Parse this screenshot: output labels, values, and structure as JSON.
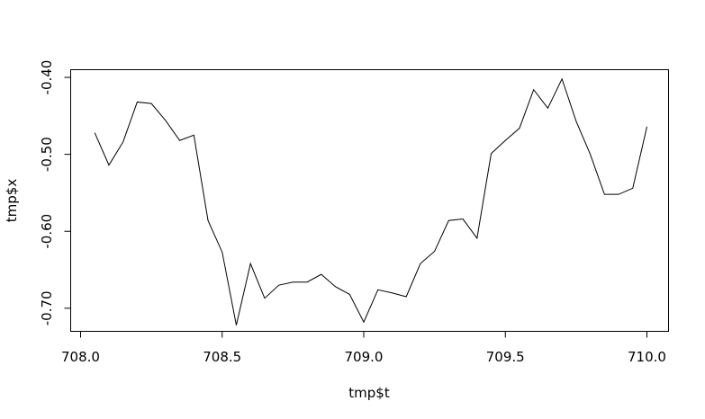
{
  "chart_data": {
    "type": "line",
    "title": "",
    "xlabel": "tmp$t",
    "ylabel": "tmp$x",
    "xlim": [
      708.0,
      710.0
    ],
    "ylim": [
      -0.73,
      -0.39
    ],
    "grid": false,
    "legend": "none",
    "x_ticks": [
      708.0,
      708.5,
      709.0,
      709.5,
      710.0
    ],
    "x_tick_labels": [
      "708.0",
      "708.5",
      "709.0",
      "709.5",
      "710.0"
    ],
    "y_ticks": [
      -0.7,
      -0.6,
      -0.5,
      -0.4
    ],
    "y_tick_labels": [
      "-0.70",
      "-0.60",
      "-0.50",
      "-0.40"
    ],
    "line_color": "#000000",
    "x": [
      708.05,
      708.1,
      708.15,
      708.2,
      708.25,
      708.3,
      708.35,
      708.4,
      708.45,
      708.5,
      708.55,
      708.6,
      708.65,
      708.7,
      708.75,
      708.8,
      708.85,
      708.9,
      708.95,
      709.0,
      709.05,
      709.1,
      709.15,
      709.2,
      709.25,
      709.3,
      709.35,
      709.4,
      709.45,
      709.5,
      709.55,
      709.6,
      709.65,
      709.7,
      709.75,
      709.8,
      709.85,
      709.9,
      709.95,
      710.0
    ],
    "y": [
      -0.472,
      -0.514,
      -0.484,
      -0.432,
      -0.434,
      -0.456,
      -0.482,
      -0.475,
      -0.586,
      -0.627,
      -0.722,
      -0.642,
      -0.687,
      -0.67,
      -0.666,
      -0.666,
      -0.656,
      -0.672,
      -0.682,
      -0.718,
      -0.676,
      -0.68,
      -0.685,
      -0.642,
      -0.626,
      -0.586,
      -0.584,
      -0.609,
      -0.499,
      -0.482,
      -0.466,
      -0.416,
      -0.44,
      -0.402,
      -0.457,
      -0.5,
      -0.552,
      -0.552,
      -0.544,
      -0.464
    ]
  }
}
